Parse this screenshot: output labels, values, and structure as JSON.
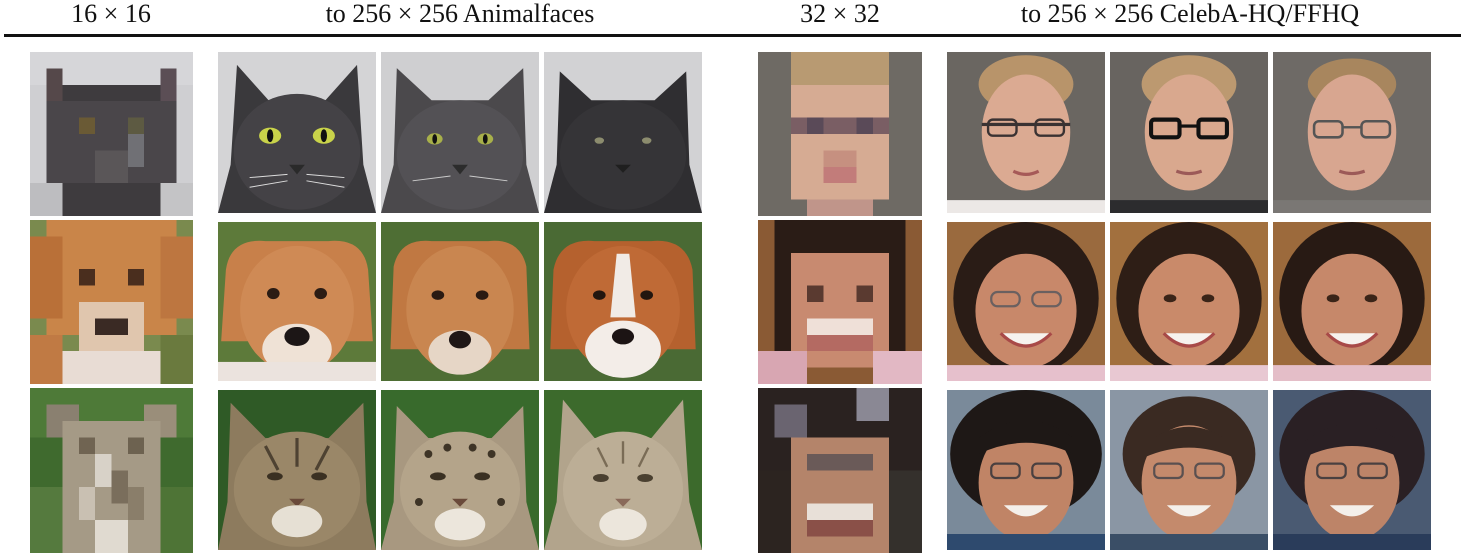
{
  "headers": {
    "col1": "16 × 16",
    "col2": "to 256 × 256 Animalfaces",
    "col3": "32 × 32",
    "col4": "to 256 × 256 CelebA-HQ/FFHQ"
  },
  "rows": [
    {
      "subject": "gray cat",
      "inputs": [
        "low-resolution cat face"
      ],
      "outputs": [
        "gray cat face",
        "gray cat face",
        "dark gray cat face"
      ]
    },
    {
      "subject": "tan dog",
      "inputs": [
        "low-resolution dog face"
      ],
      "outputs": [
        "tan dog face",
        "tan dog face",
        "brown and white dog face"
      ]
    },
    {
      "subject": "tabby cat",
      "inputs": [
        "low-resolution tabby cat face"
      ],
      "outputs": [
        "tabby cat face",
        "spotted cat face",
        "light tabby cat face"
      ]
    }
  ],
  "face_rows": [
    {
      "subject": "man",
      "input": "low-resolution face",
      "outputs": [
        "man with glasses",
        "man with dark glasses",
        "man with glasses"
      ]
    },
    {
      "subject": "woman smiling",
      "input": "low-resolution face",
      "outputs": [
        "woman with glasses",
        "woman smiling",
        "woman smiling"
      ]
    },
    {
      "subject": "woman with dark hair",
      "input": "low-resolution face",
      "outputs": [
        "woman with glasses",
        "woman with glasses",
        "woman with glasses"
      ]
    }
  ],
  "colors": {
    "cat_gray": "#4a4a4e",
    "dog_tan": "#c07a45",
    "tabby": "#9c8a6c",
    "grass": "#3c6a2a",
    "skin": "#d9a58a",
    "hair_blond": "#b8956a",
    "hair_dark": "#2a1e1a",
    "bg_gray": "#6a6a66"
  }
}
